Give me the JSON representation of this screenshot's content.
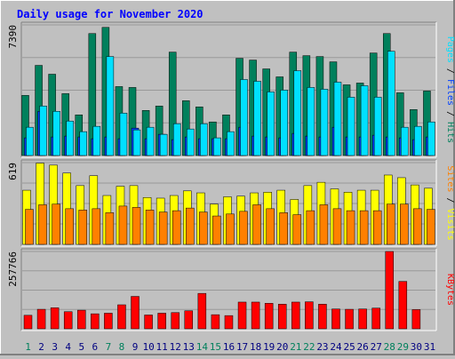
{
  "chart_data": {
    "type": "bar",
    "title": "Daily usage for November 2020",
    "categories": [
      "1",
      "2",
      "3",
      "4",
      "5",
      "6",
      "7",
      "8",
      "9",
      "10",
      "11",
      "12",
      "13",
      "14",
      "15",
      "16",
      "17",
      "18",
      "19",
      "20",
      "21",
      "22",
      "23",
      "24",
      "25",
      "26",
      "27",
      "28",
      "29",
      "30",
      "31"
    ],
    "weekend_days": [
      "1",
      "7",
      "8",
      "14",
      "15",
      "21",
      "22",
      "28",
      "29"
    ],
    "panels": [
      {
        "id": "hits",
        "ymax_label": "7390",
        "ymax": 7390,
        "side_label": "Pages / Files / Hits",
        "side_label_parts": [
          {
            "text": "Pages",
            "color": "#00e0ff"
          },
          {
            "text": " / ",
            "color": "#000000"
          },
          {
            "text": "Files",
            "color": "#0040ff"
          },
          {
            "text": " / ",
            "color": "#000000"
          },
          {
            "text": "Hits",
            "color": "#00805c"
          }
        ],
        "series": [
          {
            "name": "Hits",
            "color": "#00805c",
            "values": [
              3400,
              5100,
              4600,
              3500,
              2300,
              6900,
              7250,
              3900,
              3850,
              2550,
              2800,
              5850,
              3100,
              2750,
              1900,
              2300,
              5500,
              5400,
              4900,
              4450,
              5850,
              5650,
              5600,
              5300,
              4000,
              4100,
              5800,
              6900,
              3550,
              2600,
              3650
            ]
          },
          {
            "name": "Files",
            "color": "#0040ff",
            "values": [
              1000,
              2500,
              1050,
              1100,
              1050,
              950,
              1050,
              950,
              1550,
              950,
              1200,
              900,
              1050,
              950,
              950,
              950,
              1600,
              1100,
              1050,
              1000,
              1250,
              1100,
              1050,
              1600,
              1050,
              1050,
              1150,
              1050,
              1000,
              900,
              1050
            ]
          },
          {
            "name": "Pages",
            "color": "#00e0ff",
            "values": [
              1600,
              2800,
              2500,
              1950,
              1350,
              1650,
              5600,
              2400,
              1450,
              1600,
              1200,
              1800,
              1500,
              1800,
              1000,
              1350,
              4300,
              4200,
              3600,
              3700,
              4800,
              3850,
              3750,
              4150,
              3300,
              3950,
              3300,
              5900,
              1600,
              1650,
              1900
            ]
          }
        ]
      },
      {
        "id": "visits",
        "ymax_label": "619",
        "ymax": 619,
        "side_label": "Sites / Visits",
        "side_label_parts": [
          {
            "text": "Sites",
            "color": "#ff8000"
          },
          {
            "text": " / ",
            "color": "#000000"
          },
          {
            "text": "Visits",
            "color": "#ffff00"
          }
        ],
        "series": [
          {
            "name": "Visits",
            "color": "#ffff00",
            "values": [
              410,
              615,
              600,
              540,
              445,
              520,
              370,
              440,
              445,
              355,
              350,
              370,
              405,
              390,
              305,
              360,
              365,
              390,
              395,
              410,
              340,
              445,
              470,
              420,
              395,
              410,
              410,
              525,
              505,
              450,
              425
            ]
          },
          {
            "name": "Sites",
            "color": "#ff8000",
            "values": [
              265,
              300,
              305,
              270,
              260,
              270,
              240,
              290,
              280,
              260,
              245,
              255,
              275,
              245,
              215,
              230,
              250,
              300,
              270,
              240,
              225,
              255,
              300,
              270,
              255,
              255,
              255,
              305,
              305,
              270,
              265
            ]
          }
        ]
      },
      {
        "id": "kbytes",
        "ymax_label": "257766",
        "ymax": 257766,
        "side_label": "KBytes",
        "side_label_parts": [
          {
            "text": "KBytes",
            "color": "#ff0000"
          }
        ],
        "series": [
          {
            "name": "KBytes",
            "color": "#ff0000",
            "values": [
              45000,
              65000,
              70000,
              57000,
              62000,
              50000,
              52000,
              80000,
              108000,
              46000,
              52000,
              54000,
              60000,
              118000,
              47000,
              44000,
              89000,
              89000,
              85000,
              82000,
              89000,
              90000,
              82000,
              66000,
              65000,
              66000,
              69000,
              257766,
              158000,
              64000,
              0
            ]
          }
        ]
      }
    ]
  }
}
